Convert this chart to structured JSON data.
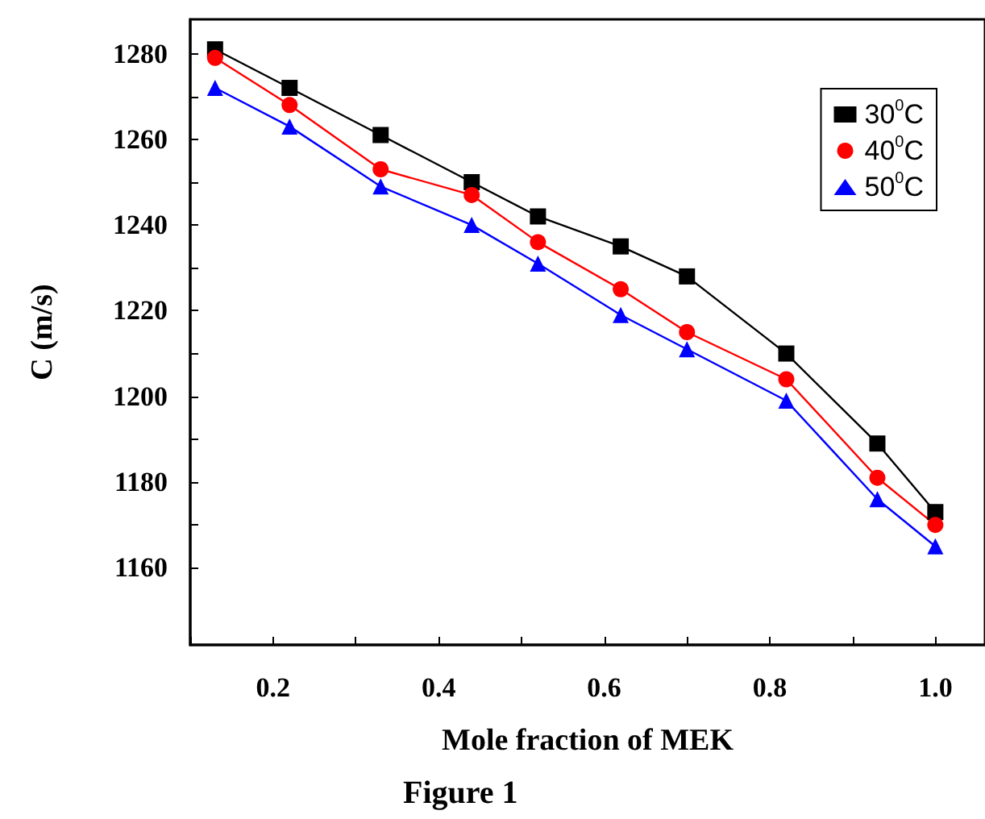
{
  "chart_data": {
    "type": "line",
    "xlabel": "Mole fraction of MEK",
    "ylabel": "C (m/s)",
    "annotations": [
      "Figure 1"
    ],
    "x": [
      0.13,
      0.22,
      0.33,
      0.44,
      0.52,
      0.62,
      0.7,
      0.82,
      0.93,
      1.0
    ],
    "series": [
      {
        "name": "30$^{0}$C",
        "color": "#000000",
        "marker": "square",
        "values": [
          1281,
          1272,
          1261,
          1250,
          1242,
          1235,
          1228,
          1210,
          1189,
          1173
        ]
      },
      {
        "name": "40$^{0}$C",
        "color": "#ff0000",
        "marker": "circle",
        "values": [
          1279,
          1268,
          1253,
          1247,
          1236,
          1225,
          1215,
          1204,
          1181,
          1170
        ]
      },
      {
        "name": "50$^{0}$C",
        "color": "#0000ff",
        "marker": "triangle",
        "values": [
          1272,
          1263,
          1249,
          1240,
          1231,
          1219,
          1211,
          1199,
          1176,
          1165
        ]
      }
    ],
    "xlim": [
      0.1,
      1.06
    ],
    "xticks": [
      0.2,
      0.4,
      0.6,
      0.8,
      {
        "value": 1,
        "label": "1.0"
      }
    ],
    "ylim": [
      1142,
      1288
    ],
    "yticks": [
      1160,
      1180,
      1200,
      1220,
      1240,
      1260,
      1280
    ],
    "grid": false,
    "legend": "top right",
    "line_style": "solid"
  }
}
